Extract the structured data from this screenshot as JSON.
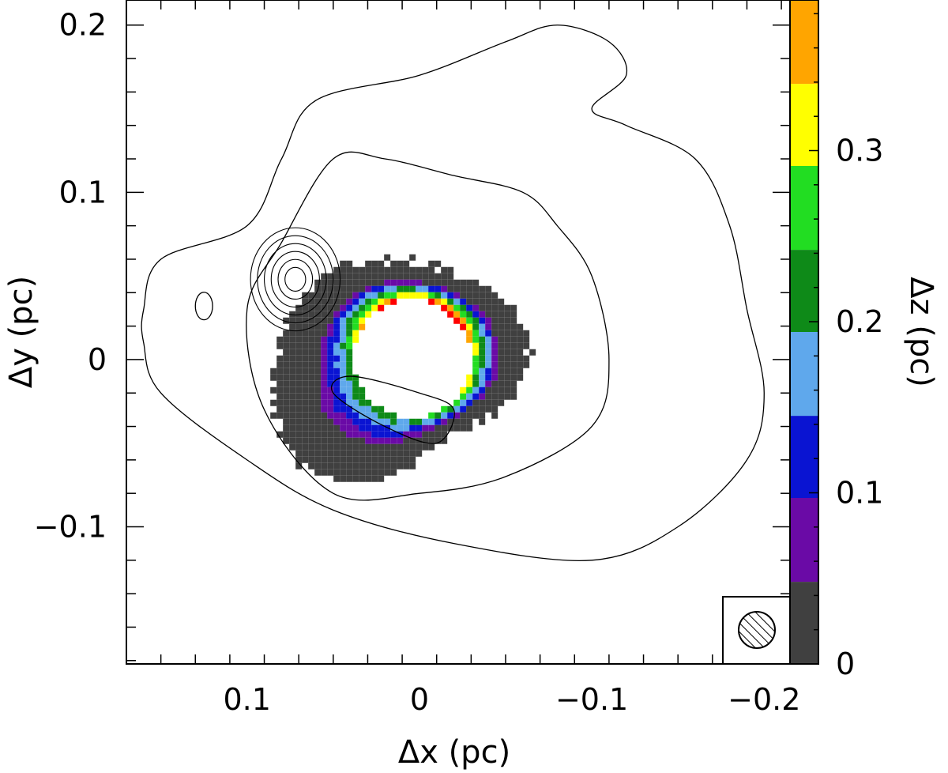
{
  "chart_data": {
    "type": "heatmap",
    "xlabel": "Δx (pc)",
    "ylabel": "Δy (pc)",
    "colorbar_label": "Δz (pc)",
    "xlim": [
      0.17,
      -0.215
    ],
    "ylim": [
      -0.182,
      0.215
    ],
    "x_reversed": true,
    "x_ticks": [
      0.1,
      0,
      -0.1,
      -0.2
    ],
    "x_tick_labels": [
      "0.1",
      "0",
      "−0.1",
      "−0.2"
    ],
    "y_ticks": [
      0.2,
      0.1,
      0,
      -0.1
    ],
    "y_tick_labels": [
      "0.2",
      "0.1",
      "0",
      "−0.1"
    ],
    "colorbar": {
      "range": [
        0,
        0.388
      ],
      "ticks": [
        0,
        0.1,
        0.2,
        0.3
      ],
      "tick_labels": [
        "0",
        "0.1",
        "0.2",
        "0.3"
      ],
      "bins": [
        {
          "from": 0.0,
          "to": 0.048,
          "color": "#404040"
        },
        {
          "from": 0.048,
          "to": 0.097,
          "color": "#6a0aa6"
        },
        {
          "from": 0.097,
          "to": 0.145,
          "color": "#0a14d2"
        },
        {
          "from": 0.145,
          "to": 0.194,
          "color": "#5fa8ec"
        },
        {
          "from": 0.194,
          "to": 0.242,
          "color": "#0e8a18"
        },
        {
          "from": 0.242,
          "to": 0.291,
          "color": "#22dd22"
        },
        {
          "from": 0.291,
          "to": 0.339,
          "color": "#ffff00"
        },
        {
          "from": 0.339,
          "to": 0.388,
          "color": "#ffa500"
        },
        {
          "from": 0.388,
          "to": 0.435,
          "color": "#ff0000"
        }
      ]
    },
    "ring": {
      "center": [
        0.008,
        -0.001
      ],
      "inner_radius": 0.034,
      "peak_radius": 0.04,
      "outer_radius": 0.062
    },
    "contours": [
      {
        "level": "outer",
        "points": [
          [
            0.16,
            0.03
          ],
          [
            0.15,
            0.06
          ],
          [
            0.1,
            0.08
          ],
          [
            0.08,
            0.12
          ],
          [
            0.06,
            0.155
          ],
          [
            0.0,
            0.17
          ],
          [
            -0.05,
            0.19
          ],
          [
            -0.08,
            0.2
          ],
          [
            -0.11,
            0.19
          ],
          [
            -0.12,
            0.17
          ],
          [
            -0.1,
            0.15
          ],
          [
            -0.12,
            0.14
          ],
          [
            -0.16,
            0.12
          ],
          [
            -0.18,
            0.08
          ],
          [
            -0.19,
            0.03
          ],
          [
            -0.2,
            -0.02
          ],
          [
            -0.19,
            -0.06
          ],
          [
            -0.15,
            -0.1
          ],
          [
            -0.1,
            -0.12
          ],
          [
            -0.02,
            -0.11
          ],
          [
            0.05,
            -0.09
          ],
          [
            0.1,
            -0.06
          ],
          [
            0.15,
            -0.02
          ],
          [
            0.16,
            0.01
          ]
        ]
      },
      {
        "level": "mid",
        "points": [
          [
            0.08,
            0.07
          ],
          [
            0.05,
            0.12
          ],
          [
            0.02,
            0.12
          ],
          [
            -0.02,
            0.11
          ],
          [
            -0.06,
            0.1
          ],
          [
            -0.08,
            0.08
          ],
          [
            -0.1,
            0.05
          ],
          [
            -0.11,
            0.0
          ],
          [
            -0.1,
            -0.04
          ],
          [
            -0.05,
            -0.07
          ],
          [
            0.0,
            -0.08
          ],
          [
            0.05,
            -0.08
          ],
          [
            0.09,
            -0.03
          ],
          [
            0.1,
            0.03
          ]
        ]
      },
      {
        "level": "inner",
        "points": [
          [
            0.04,
            -0.01
          ],
          [
            0.0,
            -0.02
          ],
          [
            -0.02,
            -0.03
          ],
          [
            -0.01,
            -0.05
          ],
          [
            0.02,
            -0.04
          ],
          [
            0.05,
            -0.02
          ]
        ]
      }
    ],
    "small_contour": {
      "center": [
        0.125,
        0.032
      ],
      "rx": 0.005,
      "ry": 0.008
    },
    "peak_contour": {
      "center": [
        0.072,
        0.048
      ],
      "radii": [
        0.006,
        0.01,
        0.014,
        0.018,
        0.022,
        0.026
      ]
    },
    "beam": {
      "diameter": 0.02
    }
  }
}
